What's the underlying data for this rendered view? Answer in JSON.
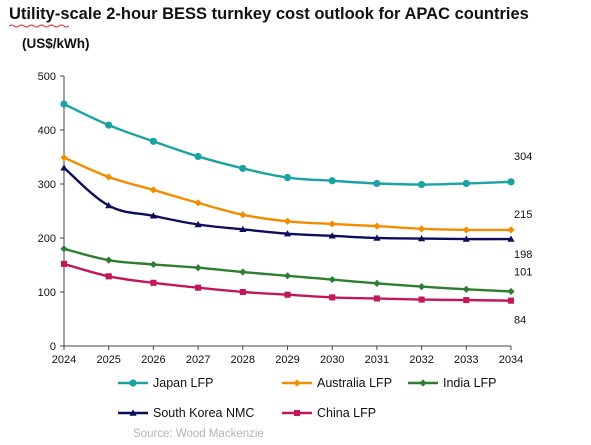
{
  "title": "Utility-scale 2-hour BESS turnkey cost outlook for APAC countries",
  "subtitle": "(US$/kWh)",
  "source": "Source: Wood Mackenzie",
  "chart_data": {
    "type": "line",
    "title": "Utility-scale 2-hour BESS turnkey cost outlook for APAC countries",
    "ylabel": "(US$/kWh)",
    "xlabel": "",
    "ylim": [
      0,
      500
    ],
    "yticks": [
      "0",
      "100",
      "200",
      "300",
      "400",
      "500"
    ],
    "x": [
      "2024",
      "2025",
      "2026",
      "2027",
      "2028",
      "2029",
      "2030",
      "2031",
      "2032",
      "2033",
      "2034"
    ],
    "grid": false,
    "legend_position": "bottom",
    "series": [
      {
        "name": "Japan LFP",
        "color": "#1aa3a3",
        "marker": "circle",
        "values": [
          448,
          409,
          379,
          351,
          329,
          312,
          306,
          301,
          299,
          301,
          304
        ],
        "end_label": "304"
      },
      {
        "name": "Australia LFP",
        "color": "#f28c00",
        "marker": "diamond",
        "values": [
          349,
          313,
          289,
          265,
          243,
          231,
          226,
          222,
          217,
          215,
          215
        ],
        "end_label": "215"
      },
      {
        "name": "India LFP",
        "color": "#2e7d32",
        "marker": "diamond",
        "values": [
          180,
          159,
          151,
          145,
          137,
          130,
          123,
          116,
          110,
          105,
          101
        ],
        "end_label": "101"
      },
      {
        "name": "South Korea NMC",
        "color": "#0d0d5c",
        "marker": "triangle",
        "values": [
          330,
          260,
          241,
          225,
          216,
          208,
          204,
          200,
          199,
          198,
          198
        ],
        "end_label": "198"
      },
      {
        "name": "China LFP",
        "color": "#c2185b",
        "marker": "square",
        "values": [
          152,
          129,
          117,
          108,
          100,
          95,
          90,
          88,
          86,
          85,
          84
        ],
        "end_label": "84"
      }
    ]
  }
}
